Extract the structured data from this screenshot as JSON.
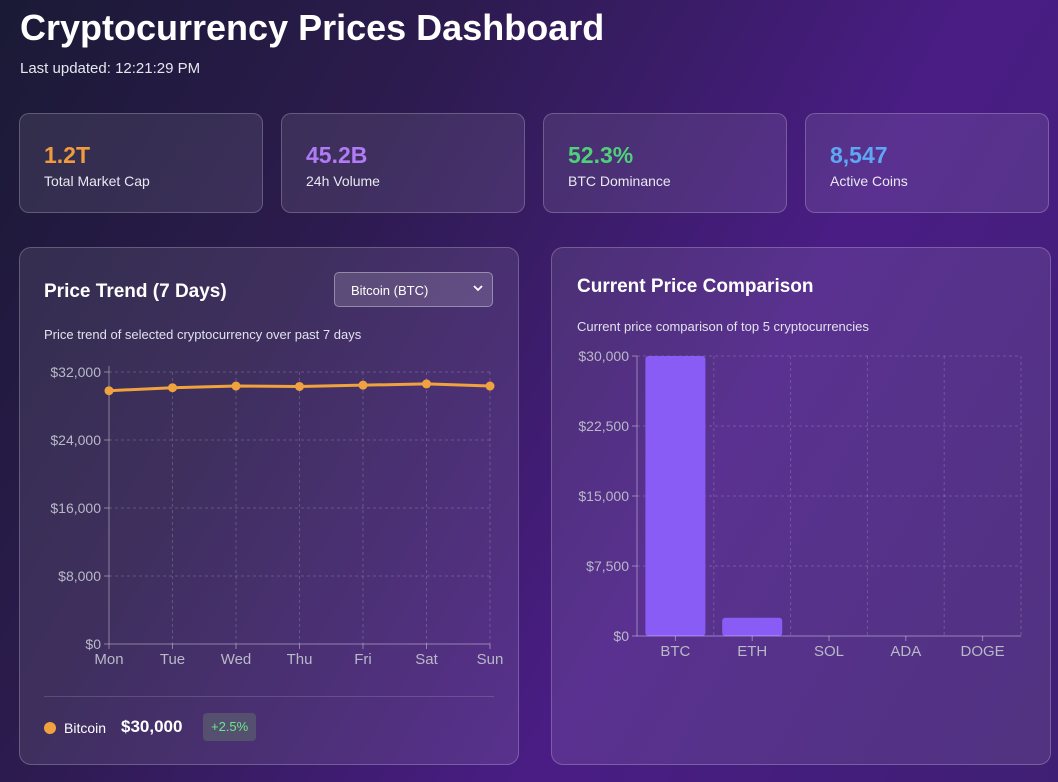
{
  "header": {
    "title": "Cryptocurrency Prices Dashboard",
    "updated": "Last updated: 12:21:29 PM"
  },
  "stats": [
    {
      "value": "1.2T",
      "label": "Total Market Cap",
      "color": "#f19a3e"
    },
    {
      "value": "45.2B",
      "label": "24h Volume",
      "color": "#b07cf5"
    },
    {
      "value": "52.3%",
      "label": "BTC Dominance",
      "color": "#4fd17a"
    },
    {
      "value": "8,547",
      "label": "Active Coins",
      "color": "#5ea7f5"
    }
  ],
  "trend_panel": {
    "title": "Price Trend (7 Days)",
    "description": "Price trend of selected cryptocurrency over past 7 days",
    "select_value": "Bitcoin (BTC)",
    "legend": {
      "name": "Bitcoin",
      "price": "$30,000",
      "change": "+2.5%",
      "color": "#f0a23e"
    }
  },
  "comparison_panel": {
    "title": "Current Price Comparison",
    "description": "Current price comparison of top 5 cryptocurrencies"
  },
  "chart_data": [
    {
      "type": "line",
      "categories": [
        "Mon",
        "Tue",
        "Wed",
        "Thu",
        "Fri",
        "Sat",
        "Sun"
      ],
      "series": [
        {
          "name": "Bitcoin",
          "values": [
            29800,
            30150,
            30350,
            30300,
            30450,
            30600,
            30350
          ],
          "color": "#f0a23e"
        }
      ],
      "ylim": [
        0,
        32000
      ],
      "yticks": [
        0,
        8000,
        16000,
        24000,
        32000
      ],
      "ytick_labels": [
        "$0",
        "$8,000",
        "$16,000",
        "$24,000",
        "$32,000"
      ],
      "grid": true
    },
    {
      "type": "bar",
      "categories": [
        "BTC",
        "ETH",
        "SOL",
        "ADA",
        "DOGE"
      ],
      "values": [
        30000,
        1950,
        0,
        0,
        0
      ],
      "color": "#8a5cf6",
      "ylim": [
        0,
        30000
      ],
      "yticks": [
        0,
        7500,
        15000,
        22500,
        30000
      ],
      "ytick_labels": [
        "$0",
        "$7,500",
        "$15,000",
        "$22,500",
        "$30,000"
      ],
      "grid": true
    }
  ]
}
